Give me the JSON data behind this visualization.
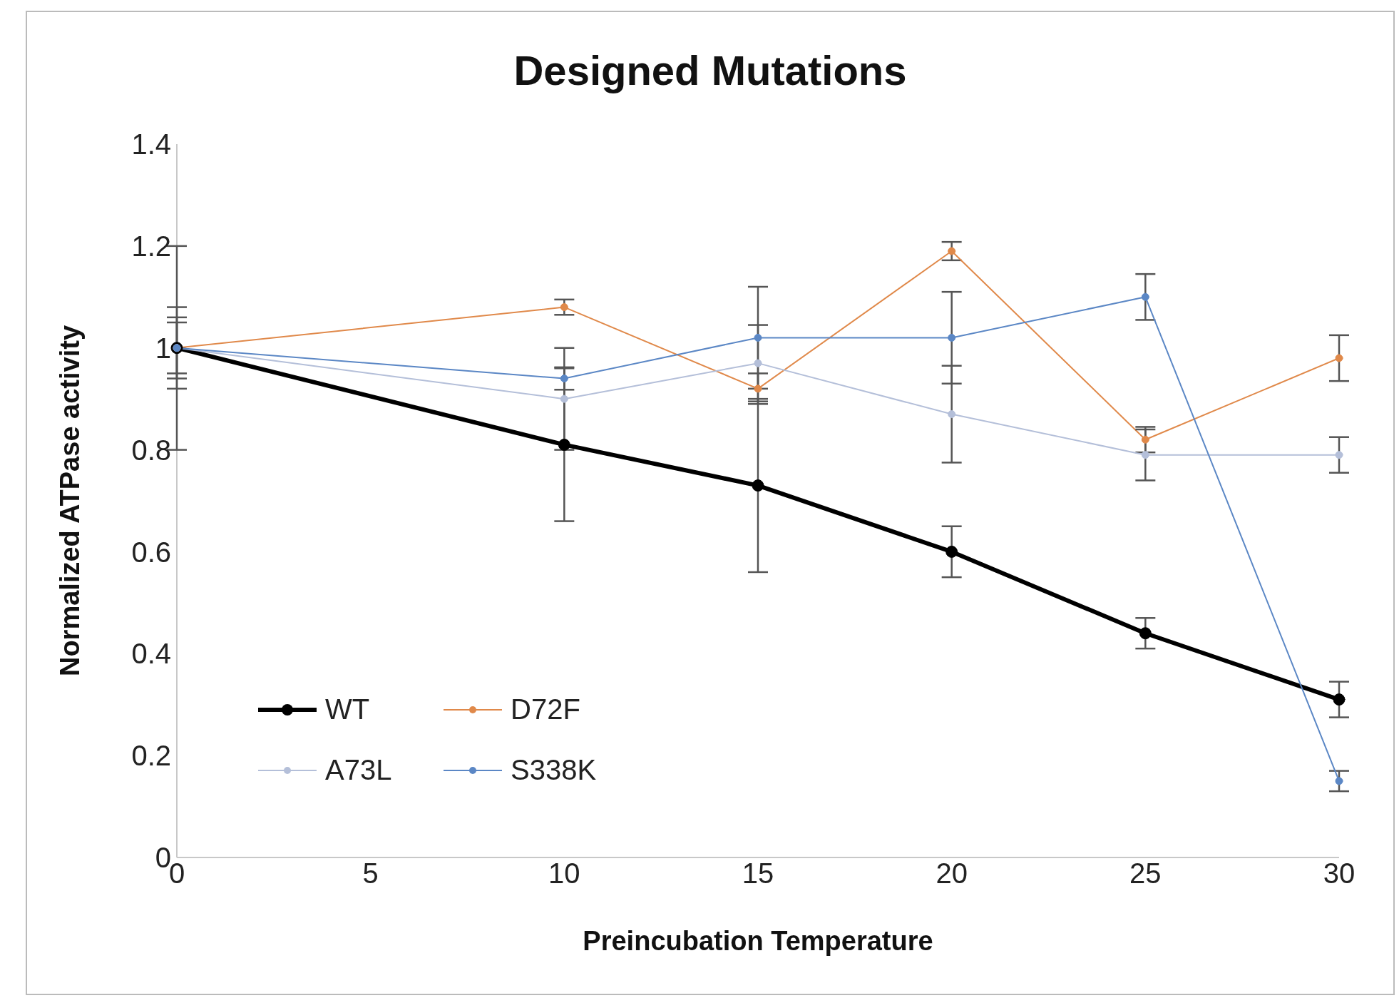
{
  "chart_data": {
    "type": "line",
    "title": "Designed Mutations",
    "xlabel": "Preincubation Temperature",
    "ylabel": "Normalized ATPase activity",
    "x": [
      0,
      10,
      15,
      20,
      25,
      30
    ],
    "series": [
      {
        "name": "WT",
        "color": "#000000",
        "values": [
          1.0,
          0.81,
          0.73,
          0.6,
          0.44,
          0.31
        ],
        "errors": [
          0.2,
          0.15,
          0.17,
          0.05,
          0.03,
          0.035
        ]
      },
      {
        "name": "D72F",
        "color": "#e0894a",
        "values": [
          1.0,
          1.08,
          0.92,
          1.19,
          0.82,
          0.98
        ],
        "errors": [
          0.05,
          0.015,
          0.03,
          0.018,
          0.025,
          0.045
        ]
      },
      {
        "name": "A73L",
        "color": "#b4bfd9",
        "values": [
          1.0,
          0.9,
          0.97,
          0.87,
          0.79,
          0.79
        ],
        "errors": [
          0.08,
          0.1,
          0.075,
          0.095,
          0.05,
          0.035
        ]
      },
      {
        "name": "S338K",
        "color": "#5b87c5",
        "values": [
          1.0,
          0.94,
          1.02,
          1.02,
          1.1,
          0.15
        ],
        "errors": [
          0.06,
          0.022,
          0.1,
          0.09,
          0.045,
          0.02
        ]
      }
    ],
    "xlim": [
      0,
      30
    ],
    "xticks": [
      0,
      5,
      10,
      15,
      20,
      25,
      30
    ],
    "ylim": [
      0,
      1.4
    ],
    "yticks": [
      0,
      0.2,
      0.4,
      0.6,
      0.8,
      1,
      1.2,
      1.4
    ],
    "legend": "bottom left",
    "marker": "circle",
    "line_style": "solid"
  }
}
